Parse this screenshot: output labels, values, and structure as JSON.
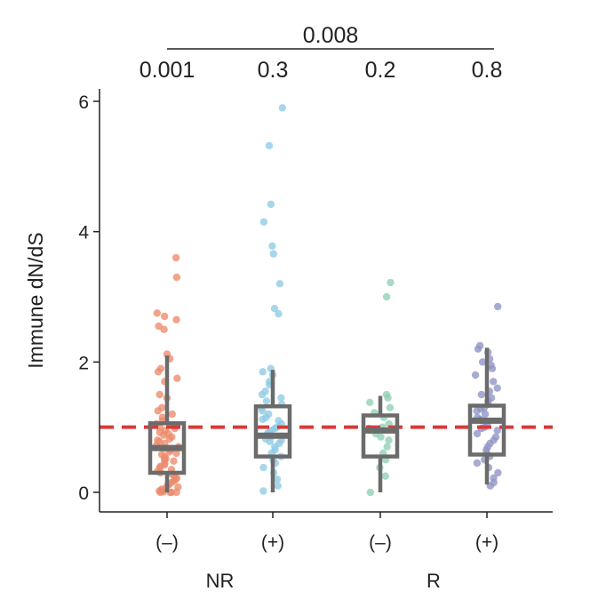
{
  "chart_data": {
    "type": "box",
    "ylabel": "Immune dN/dS",
    "ylim": [
      0,
      6.2
    ],
    "yticks": [
      0,
      2,
      4,
      6
    ],
    "reference_line": {
      "y": 1,
      "color": "#d83a3a",
      "style": "dashed"
    },
    "groups": [
      {
        "label": "NR",
        "members": [
          0,
          1
        ]
      },
      {
        "label": "R",
        "members": [
          2,
          3
        ]
      }
    ],
    "categories": [
      {
        "label": "(–)",
        "group": "NR",
        "pvalue": "0.001",
        "color": "#ec8a6c",
        "box": {
          "whisker_low": 0.0,
          "q1": 0.3,
          "median": 0.68,
          "q3": 1.06,
          "whisker_high": 2.1
        },
        "points": [
          3.6,
          3.3,
          2.75,
          2.7,
          2.65,
          2.55,
          2.5,
          2.12,
          2.05,
          1.9,
          1.85,
          1.75,
          1.7,
          1.5,
          1.45,
          1.3,
          1.25,
          1.2,
          1.15,
          1.1,
          1.05,
          1.02,
          1.0,
          0.98,
          0.95,
          0.92,
          0.9,
          0.88,
          0.85,
          0.82,
          0.8,
          0.78,
          0.75,
          0.72,
          0.7,
          0.68,
          0.65,
          0.62,
          0.6,
          0.58,
          0.55,
          0.52,
          0.5,
          0.48,
          0.45,
          0.42,
          0.4,
          0.38,
          0.35,
          0.32,
          0.3,
          0.28,
          0.25,
          0.22,
          0.2,
          0.18,
          0.15,
          0.12,
          0.1,
          0.08,
          0.05,
          0.03,
          0.02,
          0.01,
          0.0,
          0.0,
          0.0,
          0.0
        ]
      },
      {
        "label": "(+)",
        "group": "NR",
        "pvalue": "0.3",
        "color": "#8ecbe6",
        "box": {
          "whisker_low": 0.0,
          "q1": 0.55,
          "median": 0.87,
          "q3": 1.32,
          "whisker_high": 1.88
        },
        "points": [
          5.9,
          5.32,
          4.42,
          4.15,
          3.78,
          3.66,
          3.2,
          2.82,
          2.74,
          1.9,
          1.85,
          1.8,
          1.7,
          1.65,
          1.55,
          1.5,
          1.45,
          1.4,
          1.35,
          1.3,
          1.25,
          1.2,
          1.15,
          1.12,
          1.1,
          1.05,
          1.0,
          0.98,
          0.95,
          0.92,
          0.9,
          0.88,
          0.85,
          0.82,
          0.8,
          0.78,
          0.75,
          0.7,
          0.65,
          0.6,
          0.55,
          0.5,
          0.45,
          0.38,
          0.3,
          0.2,
          0.1,
          0.02
        ]
      },
      {
        "label": "(–)",
        "group": "R",
        "pvalue": "0.2",
        "color": "#8fd0b4",
        "box": {
          "whisker_low": 0.0,
          "q1": 0.55,
          "median": 0.95,
          "q3": 1.18,
          "whisker_high": 1.48
        },
        "points": [
          3.22,
          3.0,
          1.5,
          1.45,
          1.38,
          1.3,
          1.22,
          1.15,
          1.05,
          1.0,
          0.98,
          0.95,
          0.9,
          0.85,
          0.8,
          0.7,
          0.6,
          0.5,
          0.38,
          0.25,
          0.0
        ]
      },
      {
        "label": "(+)",
        "group": "R",
        "pvalue": "0.8",
        "color": "#8f94c4",
        "box": {
          "whisker_low": 0.12,
          "q1": 0.58,
          "median": 1.1,
          "q3": 1.33,
          "whisker_high": 2.22
        },
        "points": [
          2.85,
          2.25,
          2.2,
          2.15,
          2.05,
          2.0,
          1.95,
          1.9,
          1.8,
          1.7,
          1.6,
          1.55,
          1.5,
          1.45,
          1.4,
          1.35,
          1.3,
          1.28,
          1.25,
          1.2,
          1.15,
          1.12,
          1.1,
          1.05,
          1.0,
          0.98,
          0.95,
          0.9,
          0.85,
          0.8,
          0.75,
          0.7,
          0.65,
          0.6,
          0.55,
          0.5,
          0.45,
          0.38,
          0.3,
          0.22,
          0.15,
          0.1
        ]
      }
    ],
    "comparison": {
      "pvalue": "0.008",
      "from": 0,
      "to": 3
    }
  }
}
